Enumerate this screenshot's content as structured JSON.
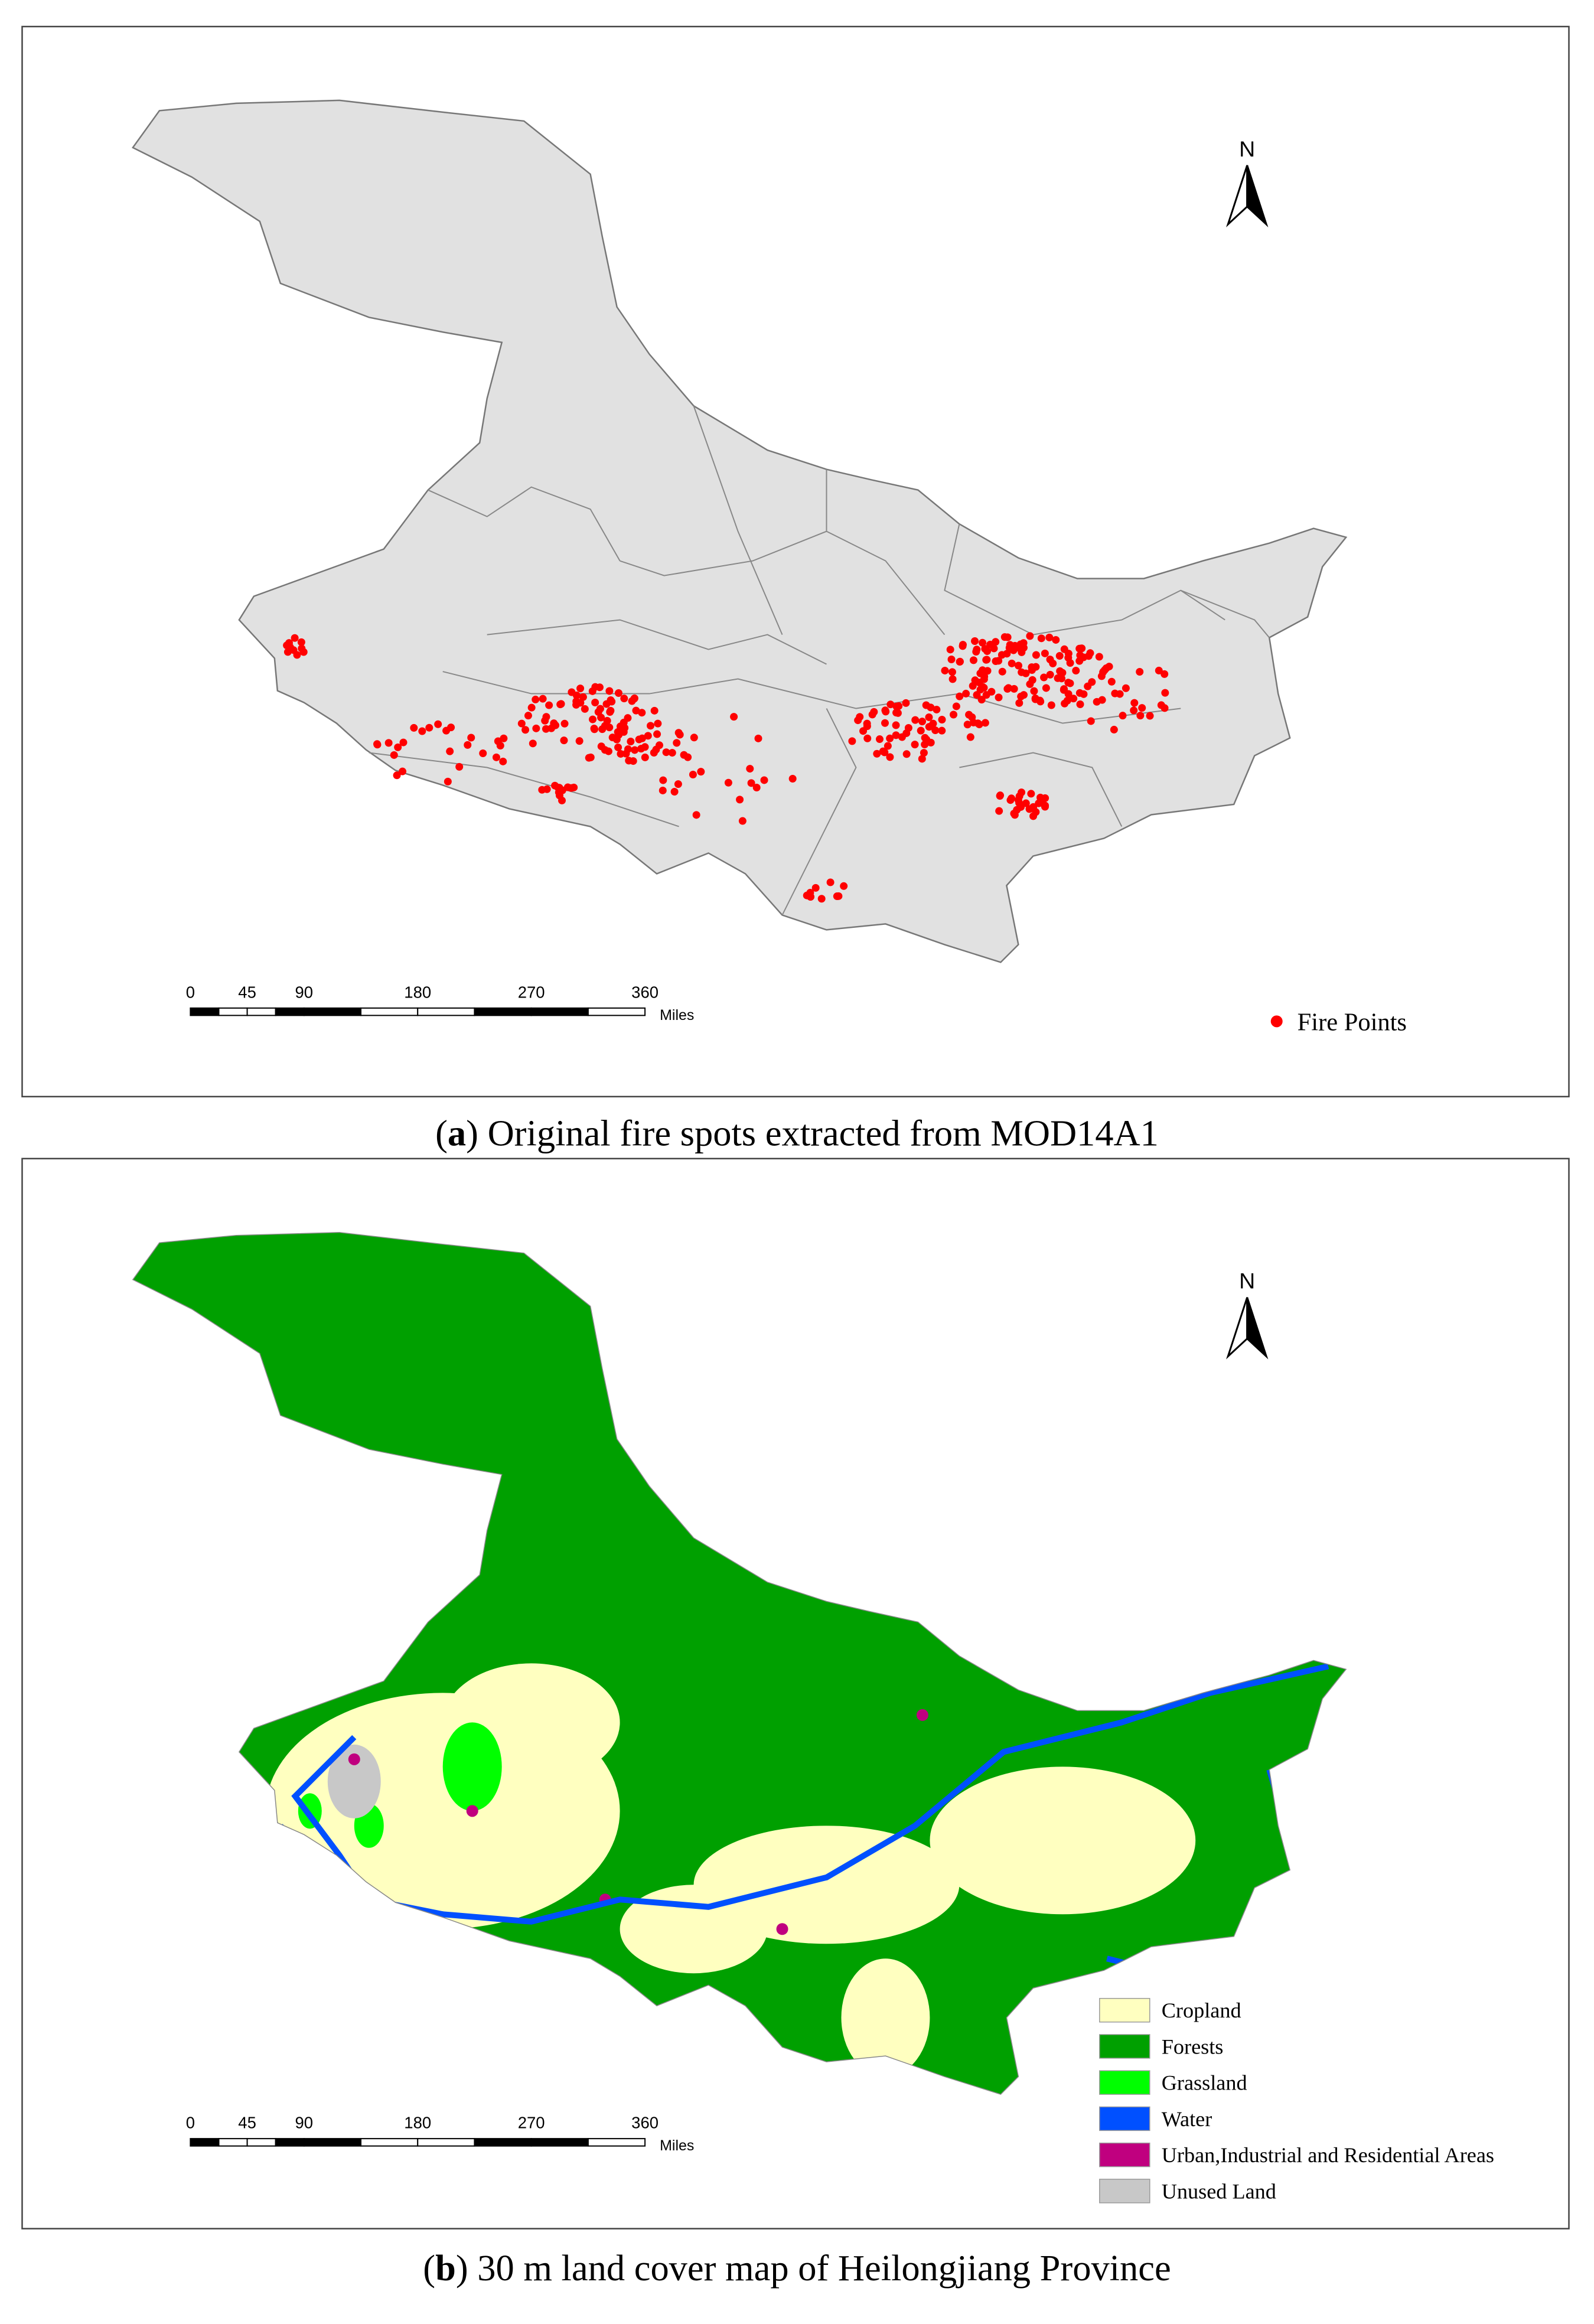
{
  "panels": [
    {
      "caption": [
        "(",
        "a",
        ") Original fire spots extracted from MOD14A1"
      ],
      "north_label": "N",
      "scale_bar": {
        "ticks": [
          0,
          45,
          90,
          180,
          270,
          360
        ],
        "unit": "Miles"
      },
      "legend": [
        {
          "label": "Fire Points",
          "color": "#ff0000"
        }
      ]
    },
    {
      "caption": [
        "(",
        "b",
        ") 30 m land cover map of Heilongjiang Province"
      ],
      "north_label": "N",
      "scale_bar": {
        "ticks": [
          0,
          45,
          90,
          180,
          270,
          360
        ],
        "unit": "Miles"
      },
      "legend": [
        {
          "label": "Cropland",
          "color": "#ffffc0"
        },
        {
          "label": "Forests",
          "color": "#00a000"
        },
        {
          "label": "Grassland",
          "color": "#00ff00"
        },
        {
          "label": "Water",
          "color": "#0050ff"
        },
        {
          "label": "Urban,Industrial and Residential Areas",
          "color": "#c0007f"
        },
        {
          "label": "Unused Land",
          "color": "#c8c8c8"
        }
      ]
    }
  ]
}
